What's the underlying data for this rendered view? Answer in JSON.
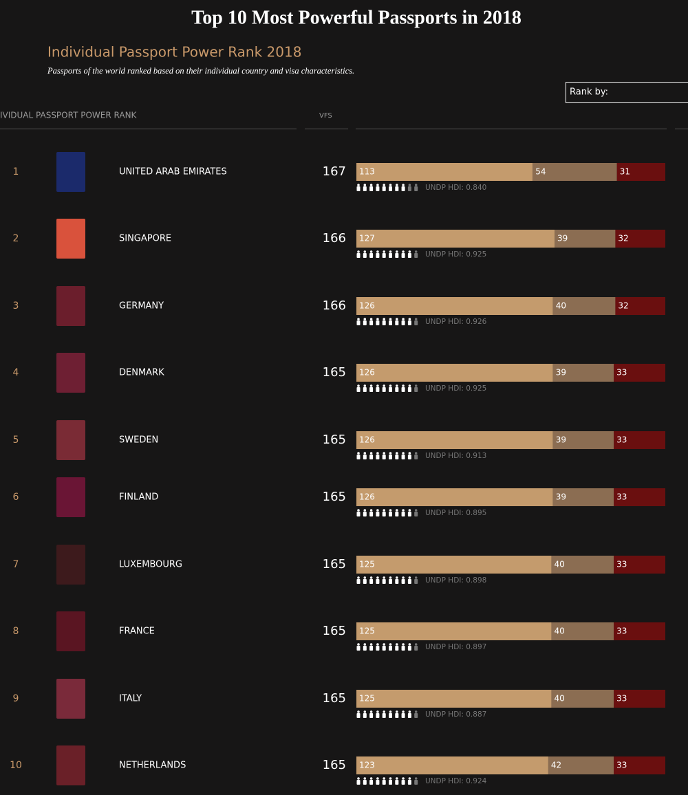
{
  "header": {
    "title": "Top 10 Most Powerful Passports in 2018",
    "subtitle": "Individual Passport Power Rank 2018",
    "description": "Passports of the world ranked based on their individual country and visa characteristics.",
    "rank_by": "Rank by:",
    "column_rank": "IVIDUAL PASSPORT POWER RANK",
    "column_vfs": "VFS"
  },
  "segment_colors": [
    "#c49b6d",
    "#8b6d52",
    "#6a0f0f"
  ],
  "rows": [
    {
      "rank": 1,
      "country": "UNITED ARAB EMIRATES",
      "vfs": 167,
      "segments": [
        113,
        54,
        31
      ],
      "hdi": "UNDP HDI: 0.840",
      "cover_color": "#1b2a6b"
    },
    {
      "rank": 2,
      "country": "SINGAPORE",
      "vfs": 166,
      "segments": [
        127,
        39,
        32
      ],
      "hdi": "UNDP HDI: 0.925",
      "cover_color": "#d9523c"
    },
    {
      "rank": 3,
      "country": "GERMANY",
      "vfs": 166,
      "segments": [
        126,
        40,
        32
      ],
      "hdi": "UNDP HDI: 0.926",
      "cover_color": "#6b1e2c"
    },
    {
      "rank": 4,
      "country": "DENMARK",
      "vfs": 165,
      "segments": [
        126,
        39,
        33
      ],
      "hdi": "UNDP HDI: 0.925",
      "cover_color": "#6e1f33"
    },
    {
      "rank": 5,
      "country": "SWEDEN",
      "vfs": 165,
      "segments": [
        126,
        39,
        33
      ],
      "hdi": "UNDP HDI: 0.913",
      "cover_color": "#7a2b35"
    },
    {
      "rank": 6,
      "country": "FINLAND",
      "vfs": 165,
      "segments": [
        126,
        39,
        33
      ],
      "hdi": "UNDP HDI: 0.895",
      "cover_color": "#6a1535"
    },
    {
      "rank": 7,
      "country": "LUXEMBOURG",
      "vfs": 165,
      "segments": [
        125,
        40,
        33
      ],
      "hdi": "UNDP HDI: 0.898",
      "cover_color": "#3d1a1c"
    },
    {
      "rank": 8,
      "country": "FRANCE",
      "vfs": 165,
      "segments": [
        125,
        40,
        33
      ],
      "hdi": "UNDP HDI: 0.897",
      "cover_color": "#5a1522"
    },
    {
      "rank": 9,
      "country": "ITALY",
      "vfs": 165,
      "segments": [
        125,
        40,
        33
      ],
      "hdi": "UNDP HDI: 0.887",
      "cover_color": "#7a2a3a"
    },
    {
      "rank": 10,
      "country": "NETHERLANDS",
      "vfs": 165,
      "segments": [
        123,
        42,
        33
      ],
      "hdi": "UNDP HDI: 0.924",
      "cover_color": "#6a2028"
    }
  ]
}
